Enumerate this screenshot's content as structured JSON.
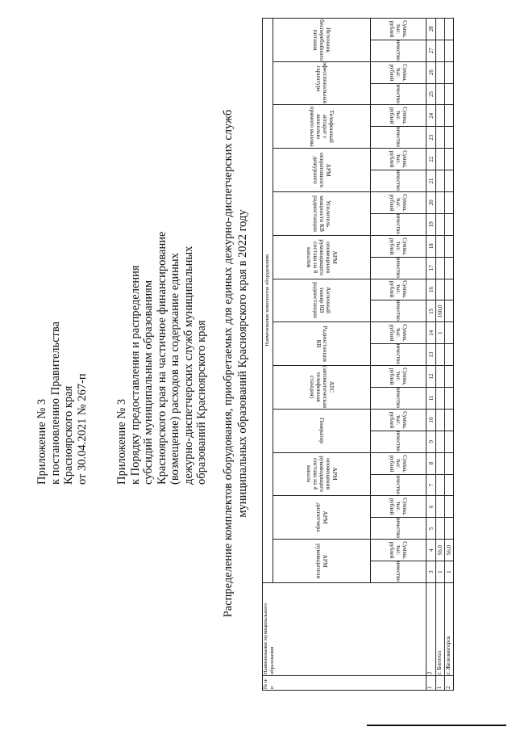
{
  "header_block_1": [
    "Приложение № 3",
    "к постановлению Правительства",
    "Красноярского края",
    "от 30.04.2021 № 267-п"
  ],
  "header_block_2": [
    "Приложение № 3",
    "к Порядку предоставления и распределения",
    "субсидий муниципальным образованиям",
    "Красноярского края на частичное финансирование",
    "(возмещение) расходов на содержание единых",
    "дежурно-диспетчерских служб муниципальных",
    "образований Красноярского края"
  ],
  "title": [
    "Распределение комплектов оборудования, приобретаемых для единых дежурно-диспетчерских служб",
    "муниципальных образований Красноярского края в 2022 году"
  ],
  "table": {
    "col_no": "№ п/п",
    "col_name": "Наименование муниципального образования",
    "group_header": "Наименование комплектов оборудования",
    "sub_qty": "Количество",
    "sub_sum": "Сумма, тыс. рублей",
    "equipment": [
      "АРМ руководителя",
      "АРМ диспетчера",
      "АРМ оповещения руководящего состава на 4 канала",
      "Генератор",
      "АТС (автоматическая телефонная станция)",
      "Радиостанция КВ",
      "Антенный тюнер КВ радиостанции",
      "АРМ оповещения руководящего состава на 8 каналов",
      "Усилитель мощности КВ радиостанции",
      "АРМ оперативного дежурного",
      "Телефонный аппарат с консолью прямого вызова",
      "Профессиональная гарнитура",
      "Источник бесперебойного питания"
    ],
    "column_numbers": [
      "1",
      "2",
      "3",
      "4",
      "5",
      "6",
      "7",
      "8",
      "9",
      "10",
      "11",
      "12",
      "13",
      "14",
      "15",
      "16",
      "17",
      "18",
      "19",
      "20",
      "21",
      "22",
      "23",
      "24",
      "25",
      "26",
      "27",
      "28"
    ],
    "rows": [
      {
        "no": "1",
        "name": "г. Боготол",
        "cells": [
          "1",
          "56,0",
          "",
          "",
          "",
          "",
          "",
          "",
          "",
          "",
          "",
          "1",
          "160,0",
          "",
          "",
          "",
          "",
          "",
          "",
          "",
          "",
          "",
          "",
          "",
          "",
          ""
        ]
      },
      {
        "no": "2",
        "name": "г. Железногорск",
        "cells": [
          "1",
          "56,0",
          "",
          "",
          "",
          "",
          "",
          "",
          "",
          "",
          "",
          "",
          "",
          "",
          "",
          "",
          "",
          "",
          "",
          "",
          "",
          "",
          "",
          "",
          "",
          ""
        ]
      }
    ]
  }
}
